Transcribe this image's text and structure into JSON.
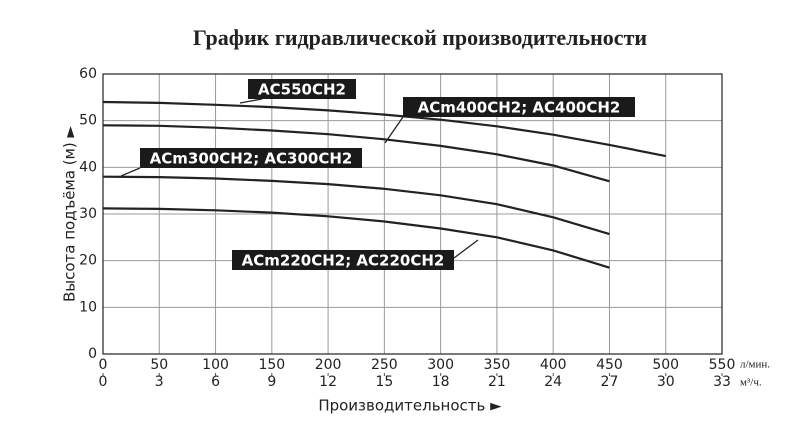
{
  "chart_data": {
    "type": "line",
    "title": "График гидравлической производительности",
    "x_label": "Производительность ►",
    "y_label": "Высота подъёма (м) ►",
    "x_unit": "л/мин.",
    "x2_unit": "м³/ч.",
    "x": [
      0,
      50,
      100,
      150,
      200,
      250,
      300,
      350,
      400,
      450,
      500
    ],
    "xlim": [
      0,
      550
    ],
    "xticks": [
      0,
      50,
      100,
      150,
      200,
      250,
      300,
      350,
      400,
      450,
      500,
      550
    ],
    "x2lim": [
      0,
      33
    ],
    "x2ticks": [
      0,
      3,
      6,
      9,
      12,
      15,
      18,
      21,
      24,
      27,
      30,
      33
    ],
    "ylim": [
      0,
      60
    ],
    "yticks": [
      0,
      10,
      20,
      30,
      40,
      50,
      60
    ],
    "grid": true,
    "series": [
      {
        "name": "AC550CH2",
        "color": "#222222",
        "values": [
          54,
          53.8,
          53.4,
          52.9,
          52.2,
          51.3,
          50.2,
          48.8,
          47,
          44.8,
          42.4
        ]
      },
      {
        "name": "ACm400CH2; AC400CH2",
        "color": "#222222",
        "values": [
          49,
          48.9,
          48.5,
          47.9,
          47.1,
          46,
          44.6,
          42.8,
          40.4,
          37,
          null
        ]
      },
      {
        "name": "ACm300CH2; AC300CH2",
        "color": "#222222",
        "values": [
          38,
          37.9,
          37.6,
          37.1,
          36.4,
          35.4,
          34,
          32.1,
          29.3,
          25.7,
          null
        ]
      },
      {
        "name": "ACm220CH2; AC220CH2",
        "color": "#222222",
        "values": [
          31.2,
          31.1,
          30.8,
          30.3,
          29.5,
          28.4,
          26.9,
          25,
          22.2,
          18.5,
          null
        ]
      }
    ]
  }
}
